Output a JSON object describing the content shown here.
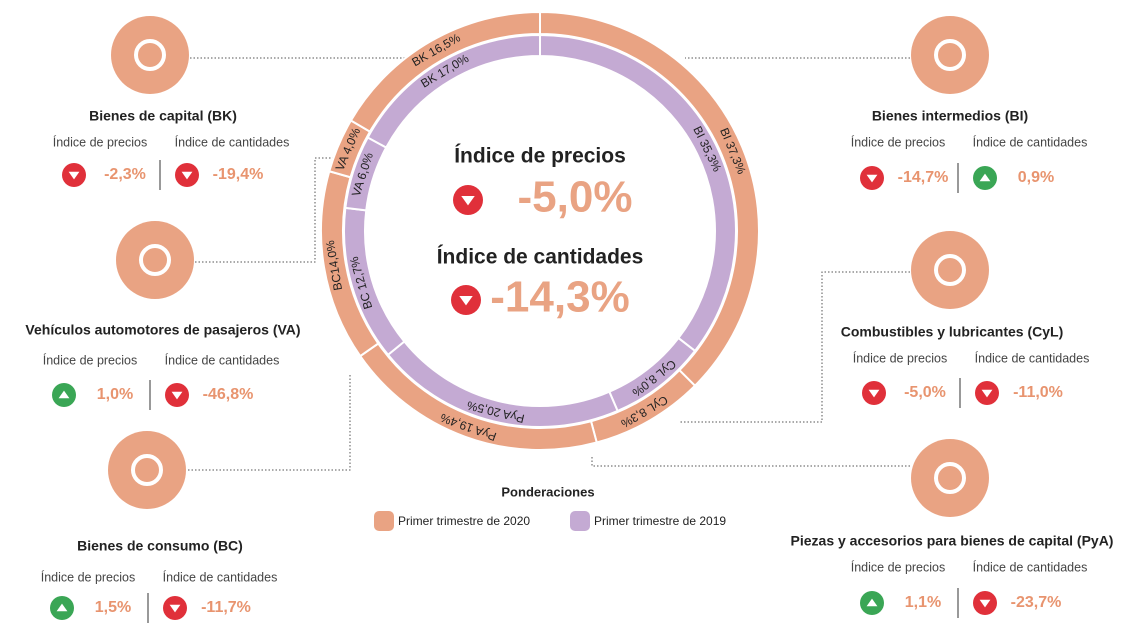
{
  "chart_data": {
    "type": "donut",
    "legend_title": "Ponderaciones",
    "series": [
      {
        "name": "Primer trimestre de 2020",
        "color": "#e9a383",
        "values": [
          37.3,
          8.3,
          19.4,
          14.0,
          4.0,
          16.5
        ],
        "value_labels": [
          "BI 37,3%",
          "CyL 8,3%",
          "PyA 19,4%",
          "BC14,0%",
          "VA 4,0%",
          "BK 16,5%"
        ]
      },
      {
        "name": "Primer trimestre de 2019",
        "color": "#c4aad3",
        "values": [
          35.3,
          8.0,
          20.5,
          12.7,
          6.0,
          17.0
        ],
        "value_labels": [
          "BI 35,3%",
          "CyL 8,0%",
          "PyA 20,5%",
          "BC 12,7%",
          "VA 6,0%",
          "BK 17,0%"
        ]
      }
    ]
  },
  "center": [
    {
      "label": "Índice de precios",
      "value": "-5,0%",
      "trend": "down"
    },
    {
      "label": "Índice de cantidades",
      "value": "-14,3%",
      "trend": "down"
    }
  ],
  "panels": [
    {
      "title": "Bienes de capital (BK)",
      "price_label": "Índice de precios",
      "price": "-2,3%",
      "price_trend": "down",
      "qty_label": "Índice de cantidades",
      "qty": "-19,4%",
      "qty_trend": "down"
    },
    {
      "title": "Vehículos automotores de pasajeros (VA)",
      "price_label": "Índice de precios",
      "price": "1,0%",
      "price_trend": "up",
      "qty_label": "Índice de cantidades",
      "qty": "-46,8%",
      "qty_trend": "down"
    },
    {
      "title": "Bienes de consumo (BC)",
      "price_label": "Índice de precios",
      "price": "1,5%",
      "price_trend": "up",
      "qty_label": "Índice de cantidades",
      "qty": "-11,7%",
      "qty_trend": "down"
    },
    {
      "title": "Bienes intermedios (BI)",
      "price_label": "Índice de precios",
      "price": "-14,7%",
      "price_trend": "down",
      "qty_label": "Índice de cantidades",
      "qty": "0,9%",
      "qty_trend": "up"
    },
    {
      "title": "Combustibles y lubricantes (CyL)",
      "price_label": "Índice de precios",
      "price": "-5,0%",
      "price_trend": "down",
      "qty_label": "Índice de cantidades",
      "qty": "-11,0%",
      "qty_trend": "down"
    },
    {
      "title": "Piezas y accesorios para bienes de capital (PyA)",
      "price_label": "Índice de precios",
      "price": "1,1%",
      "price_trend": "up",
      "qty_label": "Índice de cantidades",
      "qty": "-23,7%",
      "qty_trend": "down"
    }
  ]
}
